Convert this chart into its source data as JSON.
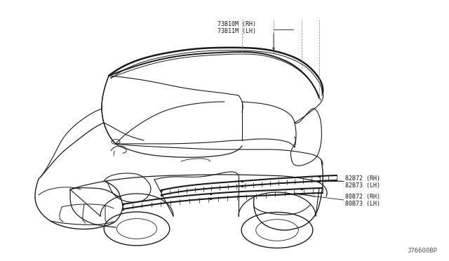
{
  "bg_color": "#ffffff",
  "line_color": "#1a1a1a",
  "dashed_color": "#888888",
  "label_color": "#1a1a1a",
  "watermark": "J76600BP",
  "labels": {
    "top_rh": "73B10M (RH)",
    "top_lh": "73B11M (LH)",
    "mid_rh": "82B72 (RH)",
    "mid_lh": "82B73 (LH)",
    "bot_rh": "80B72 (RH)",
    "bot_lh": "80B73 (LH)"
  },
  "font_size_labels": 6.0,
  "font_size_watermark": 6.5
}
